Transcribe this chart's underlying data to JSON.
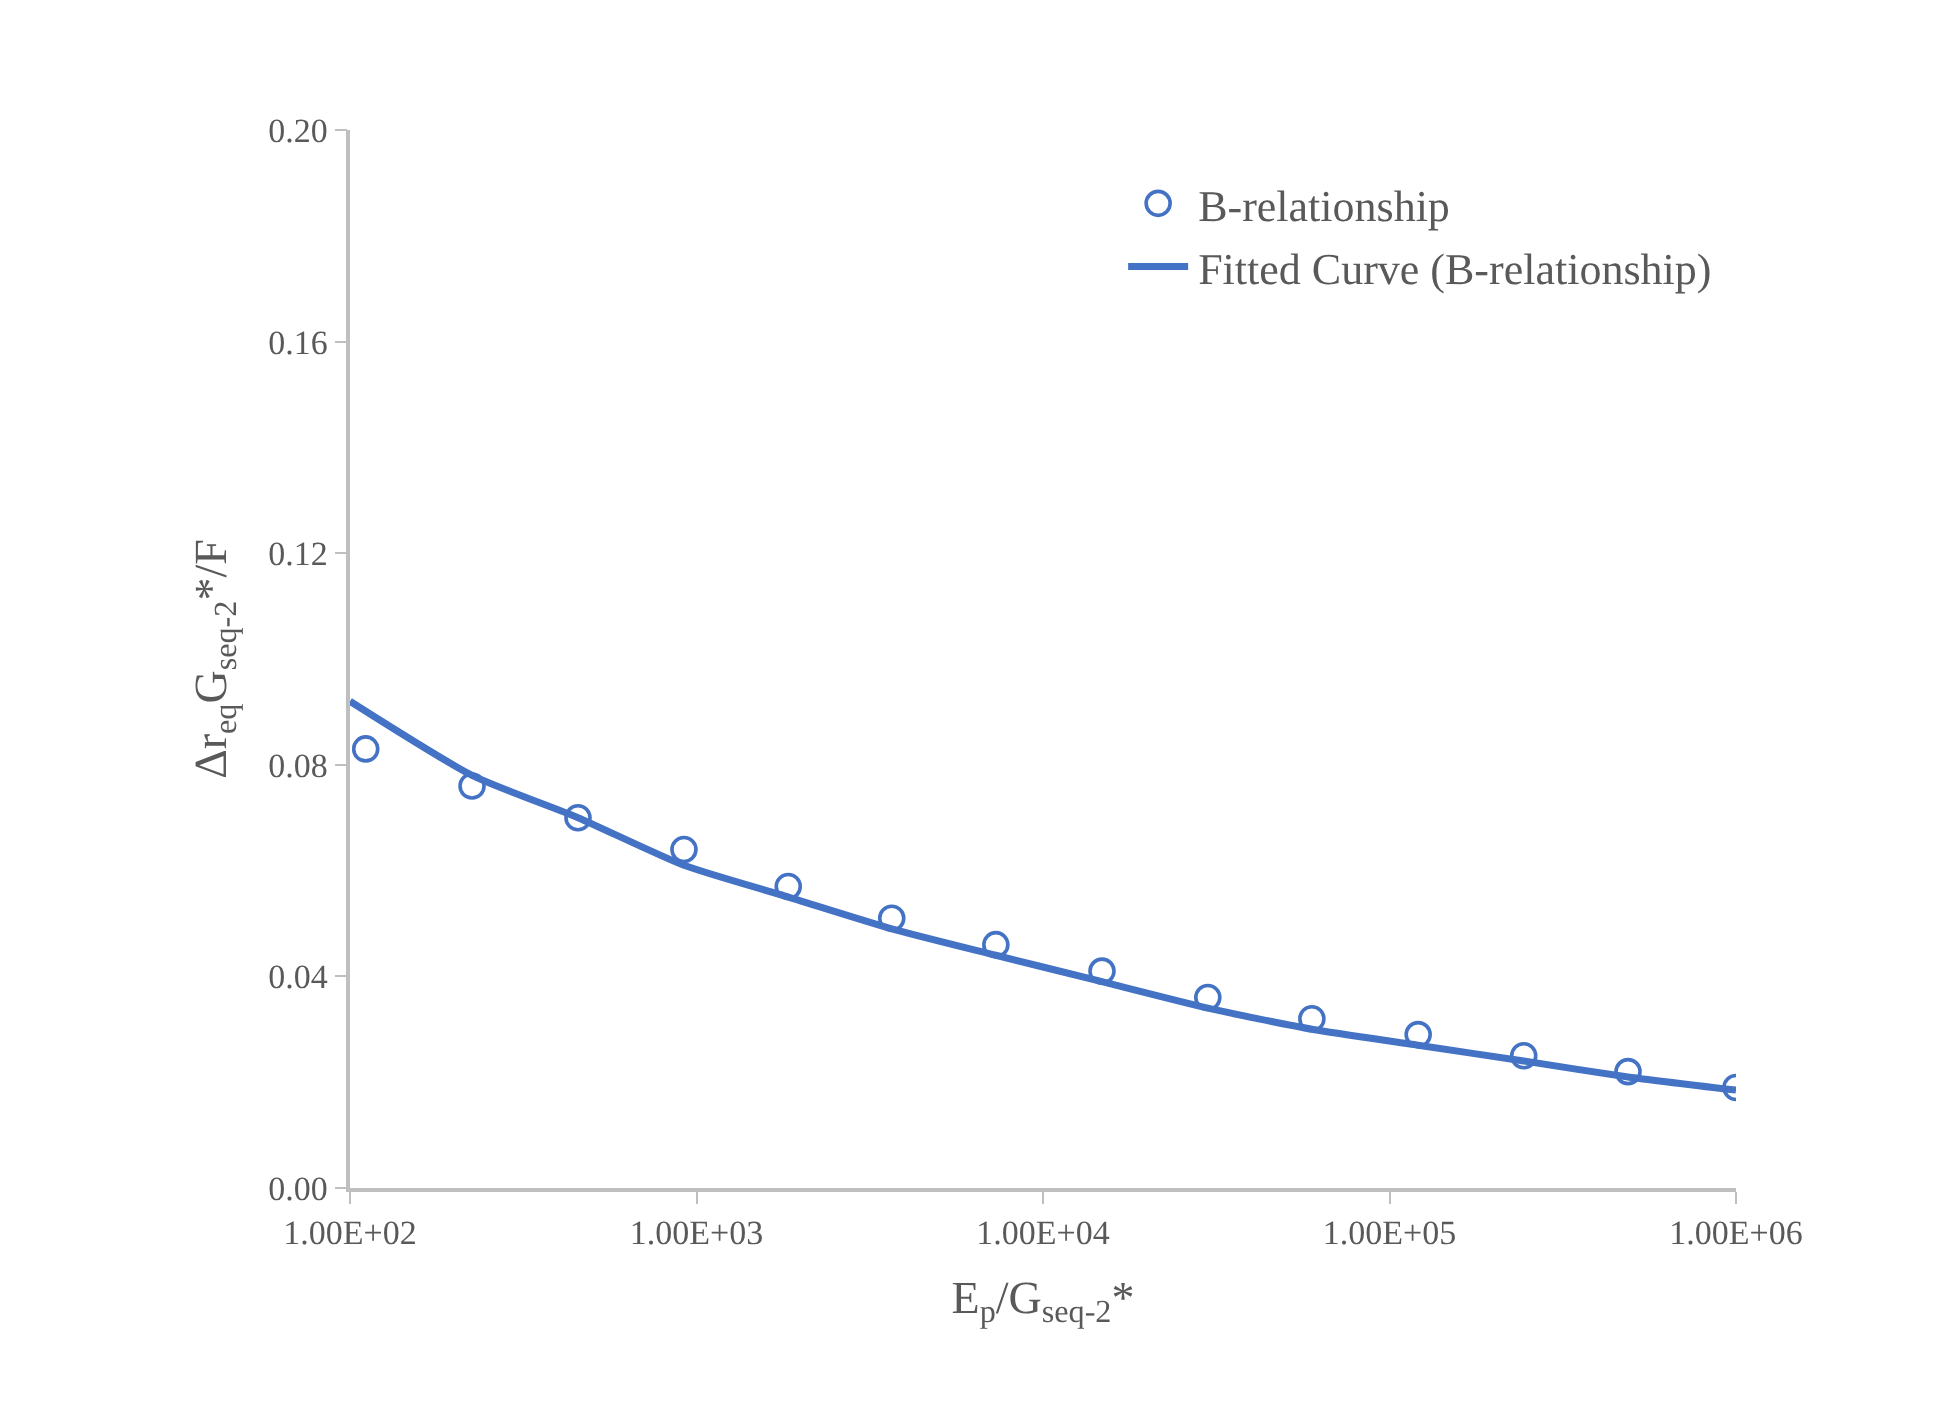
{
  "chart_data": {
    "type": "scatter",
    "xlabel": "E$_{p}$/G$_{seq-2}$*",
    "ylabel": "Δr$_{eq}$G$_{seq-2}$*/F",
    "log": "x",
    "xlim": [
      100,
      1000000
    ],
    "xticks": [
      {
        "value": 100,
        "label": "1.00E+02"
      },
      {
        "value": 1000,
        "label": "1.00E+03"
      },
      {
        "value": 10000,
        "label": "1.00E+04"
      },
      {
        "value": 100000,
        "label": "1.00E+05"
      },
      {
        "value": 1000000,
        "label": "1.00E+06"
      }
    ],
    "ylim": [
      0,
      0.2
    ],
    "yticks": [
      {
        "value": 0,
        "label": "0.00"
      },
      {
        "value": 0.04,
        "label": "0.04"
      },
      {
        "value": 0.08,
        "label": "0.08"
      },
      {
        "value": 0.12,
        "label": "0.12"
      },
      {
        "value": 0.16,
        "label": "0.16"
      },
      {
        "value": 0.2,
        "label": "0.20"
      }
    ],
    "legend": "top right",
    "series": [
      {
        "name": "B-relationship",
        "marker": "circle",
        "color": "#4472c4",
        "x": [
          111,
          225,
          455,
          920,
          1840,
          3660,
          7310,
          14800,
          29900,
          59700,
          121000,
          244000,
          488000,
          1000000
        ],
        "values": [
          0.083,
          0.076,
          0.07,
          0.064,
          0.057,
          0.051,
          0.046,
          0.041,
          0.036,
          0.032,
          0.029,
          0.025,
          0.022,
          0.019
        ]
      },
      {
        "name": "Fitted Curve (B-relationship)",
        "type": "line",
        "marker": "none",
        "line_style": "solid",
        "color": "#4472c4",
        "x": [
          100,
          225,
          455,
          920,
          1840,
          3660,
          7310,
          14800,
          29900,
          59700,
          121000,
          244000,
          488000,
          1000000
        ],
        "values": [
          0.092,
          0.078,
          0.07,
          0.061,
          0.055,
          0.049,
          0.044,
          0.039,
          0.034,
          0.03,
          0.027,
          0.024,
          0.021,
          0.0185
        ]
      }
    ]
  }
}
